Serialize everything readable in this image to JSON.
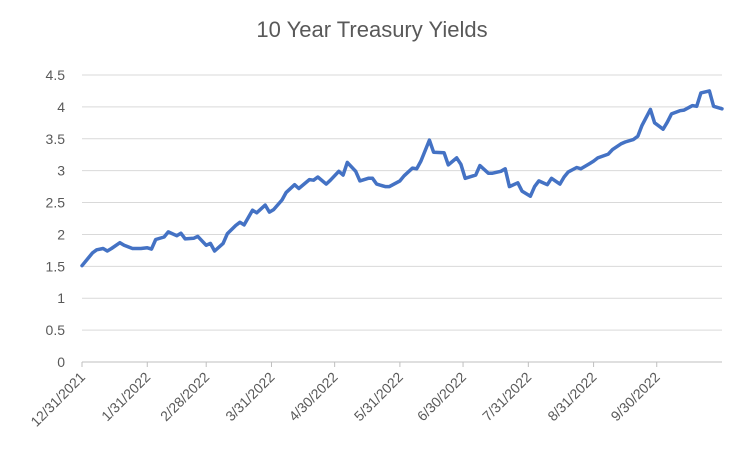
{
  "chart_data": {
    "type": "line",
    "title": "10 Year Treasury Yields",
    "xlabel": "",
    "ylabel": "",
    "ylim": [
      0,
      4.5
    ],
    "yticks": [
      "0",
      "0.5",
      "1",
      "1.5",
      "2",
      "2.5",
      "3",
      "3.5",
      "4",
      "4.5"
    ],
    "xticks": [
      "12/31/2021",
      "1/31/2022",
      "2/28/2022",
      "3/31/2022",
      "4/30/2022",
      "5/31/2022",
      "6/30/2022",
      "7/31/2022",
      "8/31/2022",
      "9/30/2022"
    ],
    "xlim": [
      "2021-12-31",
      "2022-10-31"
    ],
    "grid": true,
    "legend": "none",
    "series_color": "#4472C4",
    "series": [
      {
        "x": [
          "2021-12-31",
          "2022-01-03",
          "2022-01-05",
          "2022-01-07",
          "2022-01-10",
          "2022-01-12",
          "2022-01-14",
          "2022-01-18",
          "2022-01-20",
          "2022-01-24",
          "2022-01-26",
          "2022-01-28",
          "2022-01-31",
          "2022-02-02",
          "2022-02-04",
          "2022-02-08",
          "2022-02-10",
          "2022-02-14",
          "2022-02-16",
          "2022-02-18",
          "2022-02-22",
          "2022-02-24",
          "2022-02-28",
          "2022-03-02",
          "2022-03-04",
          "2022-03-08",
          "2022-03-10",
          "2022-03-14",
          "2022-03-16",
          "2022-03-18",
          "2022-03-22",
          "2022-03-24",
          "2022-03-28",
          "2022-03-30",
          "2022-04-01",
          "2022-04-05",
          "2022-04-07",
          "2022-04-11",
          "2022-04-13",
          "2022-04-18",
          "2022-04-20",
          "2022-04-22",
          "2022-04-26",
          "2022-04-28",
          "2022-05-02",
          "2022-05-04",
          "2022-05-06",
          "2022-05-10",
          "2022-05-12",
          "2022-05-16",
          "2022-05-18",
          "2022-05-20",
          "2022-05-24",
          "2022-05-26",
          "2022-05-31",
          "2022-06-02",
          "2022-06-06",
          "2022-06-08",
          "2022-06-10",
          "2022-06-14",
          "2022-06-16",
          "2022-06-21",
          "2022-06-23",
          "2022-06-27",
          "2022-06-29",
          "2022-07-01",
          "2022-07-06",
          "2022-07-08",
          "2022-07-12",
          "2022-07-14",
          "2022-07-18",
          "2022-07-20",
          "2022-07-22",
          "2022-07-26",
          "2022-07-28",
          "2022-08-01",
          "2022-08-03",
          "2022-08-05",
          "2022-08-09",
          "2022-08-11",
          "2022-08-15",
          "2022-08-17",
          "2022-08-19",
          "2022-08-23",
          "2022-08-25",
          "2022-08-29",
          "2022-08-31",
          "2022-09-02",
          "2022-09-07",
          "2022-09-09",
          "2022-09-13",
          "2022-09-15",
          "2022-09-19",
          "2022-09-21",
          "2022-09-23",
          "2022-09-27",
          "2022-09-29",
          "2022-10-03",
          "2022-10-05",
          "2022-10-07",
          "2022-10-11",
          "2022-10-13",
          "2022-10-17",
          "2022-10-19",
          "2022-10-21",
          "2022-10-25",
          "2022-10-27",
          "2022-10-31"
        ],
        "values": [
          1.51,
          1.63,
          1.71,
          1.76,
          1.78,
          1.74,
          1.78,
          1.87,
          1.83,
          1.78,
          1.78,
          1.78,
          1.79,
          1.77,
          1.92,
          1.96,
          2.04,
          1.98,
          2.02,
          1.93,
          1.94,
          1.97,
          1.83,
          1.86,
          1.74,
          1.86,
          2.01,
          2.14,
          2.19,
          2.15,
          2.38,
          2.34,
          2.46,
          2.35,
          2.39,
          2.54,
          2.66,
          2.78,
          2.72,
          2.86,
          2.85,
          2.9,
          2.79,
          2.85,
          2.99,
          2.93,
          3.13,
          2.99,
          2.84,
          2.88,
          2.88,
          2.79,
          2.75,
          2.75,
          2.84,
          2.92,
          3.04,
          3.03,
          3.15,
          3.48,
          3.29,
          3.28,
          3.09,
          3.2,
          3.1,
          2.88,
          2.93,
          3.08,
          2.96,
          2.96,
          2.99,
          3.03,
          2.75,
          2.81,
          2.68,
          2.6,
          2.75,
          2.84,
          2.78,
          2.88,
          2.79,
          2.9,
          2.98,
          3.05,
          3.03,
          3.11,
          3.15,
          3.2,
          3.26,
          3.33,
          3.42,
          3.45,
          3.49,
          3.54,
          3.71,
          3.96,
          3.75,
          3.65,
          3.76,
          3.89,
          3.94,
          3.95,
          4.02,
          4.01,
          4.22,
          4.25,
          4.01,
          3.97
        ]
      }
    ]
  }
}
